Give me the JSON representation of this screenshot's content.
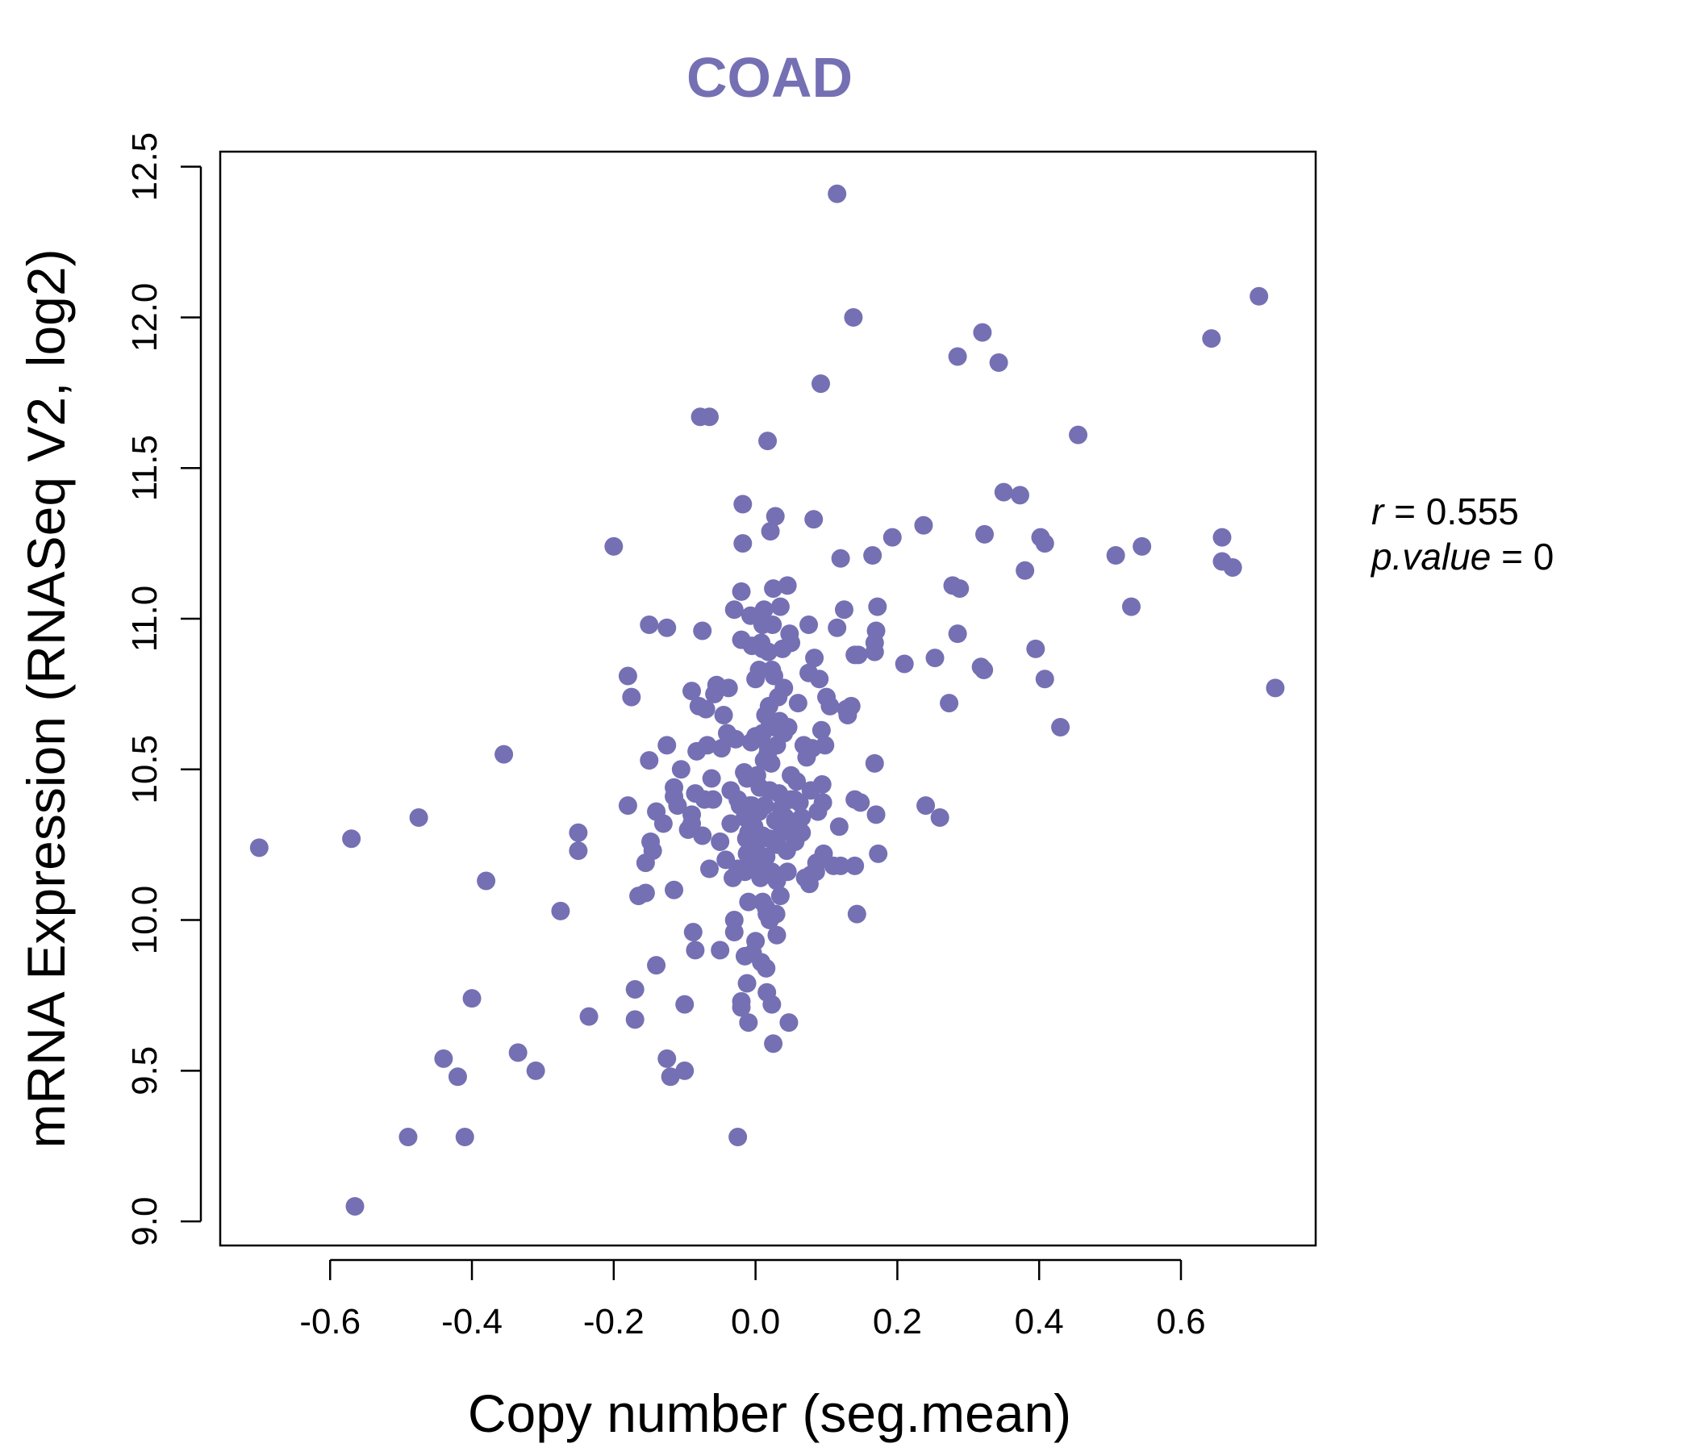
{
  "colors": {
    "point": "#7570b3",
    "title": "#7570b3",
    "axis": "#000000"
  },
  "stats": {
    "r_label": "r",
    "r_value": "0.555",
    "p_label": "p.value",
    "p_value": "0"
  },
  "chart_data": {
    "type": "scatter",
    "title": "COAD",
    "xlabel": "Copy number (seg.mean)",
    "ylabel": "mRNA Expression (RNASeq V2, log2)",
    "xlim": [
      -0.755,
      0.79
    ],
    "ylim": [
      8.92,
      12.55
    ],
    "xticks": [
      -0.6,
      -0.4,
      -0.2,
      0.0,
      0.2,
      0.4,
      0.6
    ],
    "xtick_labels": [
      "-0.6",
      "-0.4",
      "-0.2",
      "0.0",
      "0.2",
      "0.4",
      "0.6"
    ],
    "yticks": [
      9.0,
      9.5,
      10.0,
      10.5,
      11.0,
      11.5,
      12.0,
      12.5
    ],
    "ytick_labels": [
      "9.0",
      "9.5",
      "10.0",
      "10.5",
      "11.0",
      "11.5",
      "12.0",
      "12.5"
    ],
    "grid": false,
    "points": [
      [
        -0.7,
        10.24
      ],
      [
        -0.57,
        10.27
      ],
      [
        -0.565,
        9.05
      ],
      [
        -0.49,
        9.28
      ],
      [
        -0.475,
        10.34
      ],
      [
        -0.44,
        9.54
      ],
      [
        -0.42,
        9.48
      ],
      [
        -0.41,
        9.28
      ],
      [
        -0.4,
        9.74
      ],
      [
        -0.38,
        10.13
      ],
      [
        -0.355,
        10.55
      ],
      [
        -0.335,
        9.56
      ],
      [
        -0.31,
        9.5
      ],
      [
        -0.275,
        10.03
      ],
      [
        -0.25,
        10.29
      ],
      [
        -0.25,
        10.23
      ],
      [
        -0.235,
        9.68
      ],
      [
        -0.2,
        11.24
      ],
      [
        -0.18,
        10.81
      ],
      [
        -0.18,
        10.38
      ],
      [
        -0.175,
        10.74
      ],
      [
        -0.17,
        9.77
      ],
      [
        -0.17,
        9.67
      ],
      [
        -0.165,
        10.08
      ],
      [
        -0.155,
        10.19
      ],
      [
        -0.155,
        10.09
      ],
      [
        -0.15,
        10.53
      ],
      [
        -0.15,
        10.98
      ],
      [
        -0.148,
        10.26
      ],
      [
        -0.145,
        10.23
      ],
      [
        -0.14,
        10.36
      ],
      [
        -0.14,
        9.85
      ],
      [
        -0.13,
        10.32
      ],
      [
        -0.125,
        10.97
      ],
      [
        -0.125,
        10.58
      ],
      [
        -0.125,
        9.54
      ],
      [
        -0.12,
        9.48
      ],
      [
        -0.115,
        10.1
      ],
      [
        -0.115,
        10.41
      ],
      [
        -0.115,
        10.44
      ],
      [
        -0.11,
        10.38
      ],
      [
        -0.105,
        10.5
      ],
      [
        -0.1,
        9.72
      ],
      [
        -0.1,
        9.5
      ],
      [
        -0.095,
        10.3
      ],
      [
        -0.09,
        10.32
      ],
      [
        -0.09,
        10.35
      ],
      [
        -0.09,
        10.76
      ],
      [
        -0.088,
        9.96
      ],
      [
        -0.085,
        9.9
      ],
      [
        -0.085,
        10.42
      ],
      [
        -0.083,
        10.56
      ],
      [
        -0.08,
        10.71
      ],
      [
        -0.078,
        11.67
      ],
      [
        -0.075,
        10.96
      ],
      [
        -0.075,
        10.28
      ],
      [
        -0.072,
        10.4
      ],
      [
        -0.07,
        10.7
      ],
      [
        -0.068,
        10.58
      ],
      [
        -0.065,
        10.17
      ],
      [
        -0.065,
        11.67
      ],
      [
        -0.062,
        10.47
      ],
      [
        -0.06,
        10.4
      ],
      [
        -0.058,
        10.75
      ],
      [
        -0.055,
        10.78
      ],
      [
        -0.05,
        9.9
      ],
      [
        -0.05,
        10.26
      ],
      [
        -0.048,
        10.57
      ],
      [
        -0.045,
        10.68
      ],
      [
        -0.042,
        10.2
      ],
      [
        -0.04,
        10.62
      ],
      [
        -0.038,
        10.77
      ],
      [
        -0.035,
        10.43
      ],
      [
        -0.035,
        10.32
      ],
      [
        -0.032,
        10.14
      ],
      [
        -0.03,
        11.03
      ],
      [
        -0.03,
        9.96
      ],
      [
        -0.03,
        10.0
      ],
      [
        -0.028,
        10.6
      ],
      [
        -0.025,
        10.4
      ],
      [
        -0.025,
        10.17
      ],
      [
        -0.025,
        9.28
      ],
      [
        -0.022,
        10.38
      ],
      [
        -0.02,
        10.93
      ],
      [
        -0.02,
        9.73
      ],
      [
        -0.02,
        9.71
      ],
      [
        -0.02,
        11.09
      ],
      [
        -0.018,
        11.38
      ],
      [
        -0.018,
        11.25
      ],
      [
        -0.016,
        10.49
      ],
      [
        -0.015,
        10.34
      ],
      [
        -0.015,
        10.16
      ],
      [
        -0.015,
        9.88
      ],
      [
        -0.013,
        10.27
      ],
      [
        -0.012,
        10.47
      ],
      [
        -0.012,
        10.22
      ],
      [
        -0.012,
        9.79
      ],
      [
        -0.01,
        9.66
      ],
      [
        -0.01,
        10.06
      ],
      [
        -0.01,
        10.29
      ],
      [
        -0.008,
        10.38
      ],
      [
        -0.007,
        11.01
      ],
      [
        -0.006,
        10.59
      ],
      [
        -0.005,
        10.91
      ],
      [
        -0.005,
        10.38
      ],
      [
        -0.004,
        9.89
      ],
      [
        -0.003,
        10.23
      ],
      [
        -0.002,
        10.31
      ],
      [
        0.0,
        10.2
      ],
      [
        0.0,
        10.28
      ],
      [
        0.0,
        10.8
      ],
      [
        0.0,
        10.61
      ],
      [
        0.0,
        9.93
      ],
      [
        0.002,
        10.48
      ],
      [
        0.003,
        10.26
      ],
      [
        0.004,
        10.18
      ],
      [
        0.005,
        10.36
      ],
      [
        0.005,
        10.83
      ],
      [
        0.006,
        10.44
      ],
      [
        0.007,
        10.14
      ],
      [
        0.008,
        10.92
      ],
      [
        0.008,
        9.86
      ],
      [
        0.01,
        10.9
      ],
      [
        0.01,
        10.62
      ],
      [
        0.01,
        10.06
      ],
      [
        0.01,
        10.28
      ],
      [
        0.01,
        10.98
      ],
      [
        0.012,
        11.03
      ],
      [
        0.012,
        10.53
      ],
      [
        0.013,
        10.38
      ],
      [
        0.014,
        10.68
      ],
      [
        0.015,
        10.21
      ],
      [
        0.015,
        9.84
      ],
      [
        0.015,
        10.04
      ],
      [
        0.016,
        9.76
      ],
      [
        0.016,
        10.02
      ],
      [
        0.017,
        10.55
      ],
      [
        0.017,
        11.59
      ],
      [
        0.018,
        10.89
      ],
      [
        0.018,
        10.57
      ],
      [
        0.019,
        10.71
      ],
      [
        0.02,
        10.66
      ],
      [
        0.02,
        10.27
      ],
      [
        0.02,
        10.0
      ],
      [
        0.02,
        10.43
      ],
      [
        0.021,
        11.29
      ],
      [
        0.022,
        10.52
      ],
      [
        0.023,
        10.83
      ],
      [
        0.023,
        9.72
      ],
      [
        0.023,
        10.16
      ],
      [
        0.024,
        10.98
      ],
      [
        0.025,
        11.1
      ],
      [
        0.025,
        9.59
      ],
      [
        0.026,
        10.81
      ],
      [
        0.027,
        10.64
      ],
      [
        0.028,
        11.34
      ],
      [
        0.028,
        10.33
      ],
      [
        0.029,
        10.02
      ],
      [
        0.03,
        10.58
      ],
      [
        0.03,
        10.25
      ],
      [
        0.03,
        10.13
      ],
      [
        0.03,
        9.95
      ],
      [
        0.032,
        10.74
      ],
      [
        0.033,
        10.42
      ],
      [
        0.034,
        10.66
      ],
      [
        0.035,
        11.04
      ],
      [
        0.035,
        10.08
      ],
      [
        0.036,
        10.37
      ],
      [
        0.037,
        10.29
      ],
      [
        0.038,
        10.9
      ],
      [
        0.04,
        10.62
      ],
      [
        0.04,
        10.77
      ],
      [
        0.042,
        10.34
      ],
      [
        0.042,
        10.31
      ],
      [
        0.044,
        10.23
      ],
      [
        0.045,
        11.11
      ],
      [
        0.045,
        10.16
      ],
      [
        0.046,
        10.64
      ],
      [
        0.047,
        9.66
      ],
      [
        0.048,
        10.95
      ],
      [
        0.05,
        10.92
      ],
      [
        0.05,
        10.48
      ],
      [
        0.05,
        10.4
      ],
      [
        0.052,
        10.3
      ],
      [
        0.055,
        10.4
      ],
      [
        0.056,
        10.26
      ],
      [
        0.058,
        10.46
      ],
      [
        0.06,
        10.72
      ],
      [
        0.06,
        10.31
      ],
      [
        0.062,
        10.39
      ],
      [
        0.065,
        10.34
      ],
      [
        0.065,
        10.29
      ],
      [
        0.068,
        10.58
      ],
      [
        0.07,
        10.14
      ],
      [
        0.072,
        10.54
      ],
      [
        0.075,
        10.98
      ],
      [
        0.075,
        10.82
      ],
      [
        0.076,
        10.12
      ],
      [
        0.078,
        10.43
      ],
      [
        0.078,
        10.15
      ],
      [
        0.08,
        10.57
      ],
      [
        0.082,
        11.33
      ],
      [
        0.083,
        10.87
      ],
      [
        0.085,
        10.16
      ],
      [
        0.086,
        10.19
      ],
      [
        0.088,
        10.36
      ],
      [
        0.09,
        10.8
      ],
      [
        0.092,
        11.78
      ],
      [
        0.093,
        10.63
      ],
      [
        0.094,
        10.45
      ],
      [
        0.095,
        10.39
      ],
      [
        0.096,
        10.22
      ],
      [
        0.098,
        10.58
      ],
      [
        0.1,
        10.74
      ],
      [
        0.105,
        10.71
      ],
      [
        0.11,
        10.18
      ],
      [
        0.115,
        12.41
      ],
      [
        0.115,
        10.97
      ],
      [
        0.118,
        10.31
      ],
      [
        0.12,
        11.2
      ],
      [
        0.12,
        10.18
      ],
      [
        0.125,
        11.03
      ],
      [
        0.128,
        10.7
      ],
      [
        0.13,
        10.68
      ],
      [
        0.135,
        10.71
      ],
      [
        0.138,
        12.0
      ],
      [
        0.14,
        10.88
      ],
      [
        0.14,
        10.4
      ],
      [
        0.14,
        10.18
      ],
      [
        0.143,
        10.02
      ],
      [
        0.145,
        10.88
      ],
      [
        0.148,
        10.39
      ],
      [
        0.165,
        11.21
      ],
      [
        0.168,
        10.89
      ],
      [
        0.168,
        10.92
      ],
      [
        0.168,
        10.52
      ],
      [
        0.17,
        10.96
      ],
      [
        0.17,
        10.35
      ],
      [
        0.172,
        11.04
      ],
      [
        0.173,
        10.22
      ],
      [
        0.193,
        11.27
      ],
      [
        0.21,
        10.85
      ],
      [
        0.237,
        11.31
      ],
      [
        0.24,
        10.38
      ],
      [
        0.253,
        10.87
      ],
      [
        0.26,
        10.34
      ],
      [
        0.273,
        10.72
      ],
      [
        0.278,
        11.11
      ],
      [
        0.285,
        11.87
      ],
      [
        0.285,
        10.95
      ],
      [
        0.288,
        11.1
      ],
      [
        0.318,
        10.84
      ],
      [
        0.32,
        11.95
      ],
      [
        0.322,
        10.83
      ],
      [
        0.323,
        11.28
      ],
      [
        0.343,
        11.85
      ],
      [
        0.35,
        11.42
      ],
      [
        0.373,
        11.41
      ],
      [
        0.38,
        11.16
      ],
      [
        0.395,
        10.9
      ],
      [
        0.402,
        11.27
      ],
      [
        0.408,
        11.25
      ],
      [
        0.408,
        10.8
      ],
      [
        0.43,
        10.64
      ],
      [
        0.455,
        11.61
      ],
      [
        0.508,
        11.21
      ],
      [
        0.53,
        11.04
      ],
      [
        0.545,
        11.24
      ],
      [
        0.643,
        11.93
      ],
      [
        0.658,
        11.27
      ],
      [
        0.658,
        11.19
      ],
      [
        0.673,
        11.17
      ],
      [
        0.71,
        12.07
      ],
      [
        0.733,
        10.77
      ]
    ]
  }
}
